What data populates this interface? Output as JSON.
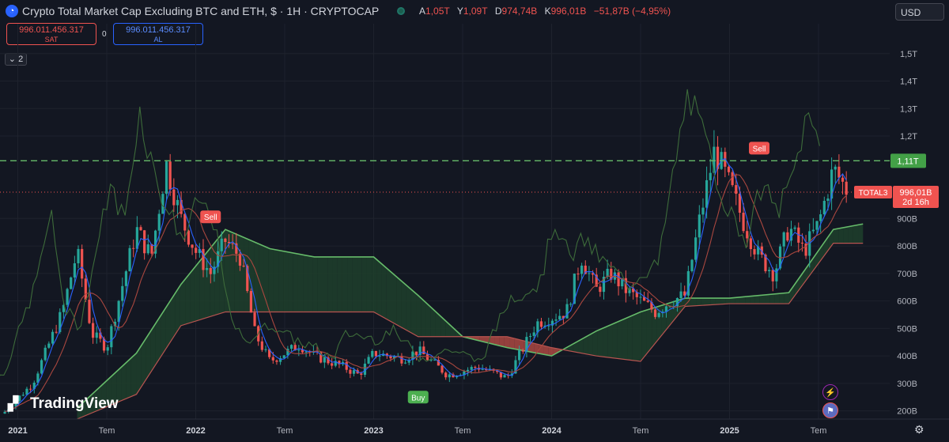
{
  "header": {
    "title": "Crypto Total Market Cap Excluding BTC and ETH, $ · 1H · CRYPTOCAP",
    "ohlc": [
      {
        "key": "A",
        "value": "1,05T"
      },
      {
        "key": "Y",
        "value": "1,09T"
      },
      {
        "key": "D",
        "value": "974,74B"
      },
      {
        "key": "K",
        "value": "996,01B"
      },
      {
        "key": "",
        "value": "−51,87B (−4,95%)"
      }
    ]
  },
  "currency": "USD",
  "trade": {
    "sell_price": "996.011.456.317",
    "sell_label": "SAT",
    "spread": "0",
    "buy_price": "996.011.456.317",
    "buy_label": "AL"
  },
  "indicator_toggle": "2",
  "brand": "TradingView",
  "colors": {
    "up": "#26a69a",
    "down": "#ef5350",
    "cloud_green": "#1e3f2b",
    "cloud_red": "#b54b45",
    "green_line": "#66bb6a",
    "blue_line": "#2962ff",
    "bg": "#131722"
  },
  "chart_data": {
    "type": "candlestick",
    "title": "Crypto Total Market Cap Excluding BTC and ETH",
    "y_ticks": [
      "1,5T",
      "1,4T",
      "1,3T",
      "1,2T",
      "1,11T",
      "900B",
      "800B",
      "700B",
      "600B",
      "500B",
      "400B",
      "300B",
      "200B"
    ],
    "y_tick_values": [
      1500,
      1400,
      1300,
      1200,
      1110,
      900,
      800,
      700,
      600,
      500,
      400,
      300,
      200
    ],
    "x_ticks": [
      "2021",
      "Tem",
      "2022",
      "Tem",
      "2023",
      "Tem",
      "2024",
      "Tem",
      "2025",
      "Tem"
    ],
    "x_tick_dates": [
      "2021-01",
      "2021-07",
      "2022-01",
      "2022-07",
      "2023-01",
      "2023-07",
      "2024-01",
      "2024-07",
      "2025-01",
      "2025-07"
    ],
    "ylim": [
      170,
      1580
    ],
    "price_marker": {
      "label": "TOTAL3",
      "value": "996,01B",
      "countdown": "2d 16h",
      "level": 996
    },
    "resistance_level": {
      "label": "1,11T",
      "value": 1110
    },
    "signals": [
      {
        "label": "Sell",
        "date": "2022-02",
        "price": 860
      },
      {
        "label": "Buy",
        "date": "2023-04",
        "price": 290
      },
      {
        "label": "Sell",
        "date": "2025-03",
        "price": 1110
      }
    ],
    "price_path": [
      {
        "date": "2020-12",
        "value": 190
      },
      {
        "date": "2021-02",
        "value": 300
      },
      {
        "date": "2021-04",
        "value": 560
      },
      {
        "date": "2021-05",
        "value": 780
      },
      {
        "date": "2021-06",
        "value": 480
      },
      {
        "date": "2021-07",
        "value": 430
      },
      {
        "date": "2021-09",
        "value": 860
      },
      {
        "date": "2021-10",
        "value": 760
      },
      {
        "date": "2021-11",
        "value": 1100
      },
      {
        "date": "2021-12",
        "value": 900
      },
      {
        "date": "2022-01",
        "value": 780
      },
      {
        "date": "2022-02",
        "value": 700
      },
      {
        "date": "2022-03",
        "value": 820
      },
      {
        "date": "2022-04",
        "value": 760
      },
      {
        "date": "2022-05",
        "value": 480
      },
      {
        "date": "2022-06",
        "value": 380
      },
      {
        "date": "2022-08",
        "value": 440
      },
      {
        "date": "2022-09",
        "value": 400
      },
      {
        "date": "2022-11",
        "value": 360
      },
      {
        "date": "2022-12",
        "value": 330
      },
      {
        "date": "2023-01",
        "value": 410
      },
      {
        "date": "2023-03",
        "value": 390
      },
      {
        "date": "2023-04",
        "value": 420
      },
      {
        "date": "2023-06",
        "value": 330
      },
      {
        "date": "2023-08",
        "value": 360
      },
      {
        "date": "2023-10",
        "value": 320
      },
      {
        "date": "2023-11",
        "value": 420
      },
      {
        "date": "2023-12",
        "value": 520
      },
      {
        "date": "2024-02",
        "value": 560
      },
      {
        "date": "2024-03",
        "value": 760
      },
      {
        "date": "2024-04",
        "value": 640
      },
      {
        "date": "2024-05",
        "value": 700
      },
      {
        "date": "2024-06",
        "value": 640
      },
      {
        "date": "2024-08",
        "value": 560
      },
      {
        "date": "2024-09",
        "value": 600
      },
      {
        "date": "2024-10",
        "value": 620
      },
      {
        "date": "2024-11",
        "value": 900
      },
      {
        "date": "2024-12",
        "value": 1150
      },
      {
        "date": "2025-01",
        "value": 1020
      },
      {
        "date": "2025-02",
        "value": 880
      },
      {
        "date": "2025-03",
        "value": 760
      },
      {
        "date": "2025-04",
        "value": 700
      },
      {
        "date": "2025-05",
        "value": 870
      },
      {
        "date": "2025-06",
        "value": 780
      },
      {
        "date": "2025-07",
        "value": 880
      },
      {
        "date": "2025-08",
        "value": 1080
      },
      {
        "date": "2025-09",
        "value": 996
      }
    ],
    "ichimoku": {
      "span_a": [
        {
          "date": "2021-05",
          "value": 210
        },
        {
          "date": "2021-09",
          "value": 410
        },
        {
          "date": "2021-12",
          "value": 660
        },
        {
          "date": "2022-03",
          "value": 860
        },
        {
          "date": "2022-06",
          "value": 790
        },
        {
          "date": "2022-09",
          "value": 760
        },
        {
          "date": "2023-01",
          "value": 760
        },
        {
          "date": "2023-04",
          "value": 620
        },
        {
          "date": "2023-07",
          "value": 470
        },
        {
          "date": "2023-10",
          "value": 430
        },
        {
          "date": "2024-01",
          "value": 400
        },
        {
          "date": "2024-04",
          "value": 490
        },
        {
          "date": "2024-07",
          "value": 560
        },
        {
          "date": "2024-10",
          "value": 610
        },
        {
          "date": "2025-01",
          "value": 610
        },
        {
          "date": "2025-05",
          "value": 630
        },
        {
          "date": "2025-08",
          "value": 860
        },
        {
          "date": "2025-10",
          "value": 880
        }
      ],
      "span_b": [
        {
          "date": "2021-05",
          "value": 170
        },
        {
          "date": "2021-09",
          "value": 260
        },
        {
          "date": "2021-12",
          "value": 510
        },
        {
          "date": "2022-03",
          "value": 560
        },
        {
          "date": "2022-06",
          "value": 560
        },
        {
          "date": "2022-09",
          "value": 560
        },
        {
          "date": "2023-01",
          "value": 560
        },
        {
          "date": "2023-04",
          "value": 470
        },
        {
          "date": "2023-07",
          "value": 470
        },
        {
          "date": "2023-10",
          "value": 470
        },
        {
          "date": "2024-01",
          "value": 430
        },
        {
          "date": "2024-04",
          "value": 400
        },
        {
          "date": "2024-07",
          "value": 380
        },
        {
          "date": "2024-10",
          "value": 580
        },
        {
          "date": "2025-01",
          "value": 590
        },
        {
          "date": "2025-05",
          "value": 590
        },
        {
          "date": "2025-08",
          "value": 810
        },
        {
          "date": "2025-10",
          "value": 810
        }
      ]
    }
  }
}
